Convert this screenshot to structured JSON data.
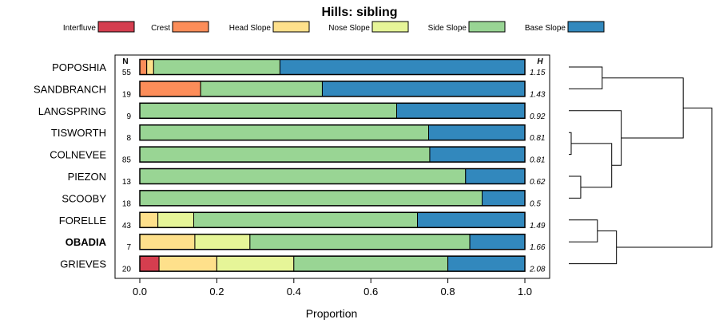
{
  "chart_data": {
    "type": "bar",
    "subtype": "stacked-horizontal-proportion",
    "title": "Hills: sibling",
    "xlabel": "Proportion",
    "xlim": [
      0,
      1
    ],
    "xticks": [
      {
        "value": 0,
        "label": "0.0"
      },
      {
        "value": 0.2,
        "label": "0.2"
      },
      {
        "value": 0.4,
        "label": "0.4"
      },
      {
        "value": 0.6,
        "label": "0.6"
      },
      {
        "value": 0.8,
        "label": "0.8"
      },
      {
        "value": 1,
        "label": "1.0"
      }
    ],
    "n_header": "N",
    "h_header": "H",
    "legend_position": "top",
    "series": [
      {
        "name": "Interfluve",
        "color": "#d53e4f"
      },
      {
        "name": "Crest",
        "color": "#fc8d59"
      },
      {
        "name": "Head Slope",
        "color": "#fee08b"
      },
      {
        "name": "Nose Slope",
        "color": "#e6f598"
      },
      {
        "name": "Side Slope",
        "color": "#99d594"
      },
      {
        "name": "Base Slope",
        "color": "#3288bd"
      }
    ],
    "categories": [
      {
        "name": "POPOSHIA",
        "n": "55",
        "h": "1.15",
        "bold": false,
        "values": [
          0,
          0.018,
          0.018,
          0,
          0.328,
          0.636
        ]
      },
      {
        "name": "SANDBRANCH",
        "n": "19",
        "h": "1.43",
        "bold": false,
        "values": [
          0,
          0.158,
          0,
          0,
          0.316,
          0.526
        ]
      },
      {
        "name": "LANGSPRING",
        "n": "9",
        "h": "0.92",
        "bold": false,
        "values": [
          0,
          0,
          0,
          0,
          0.667,
          0.333
        ]
      },
      {
        "name": "TISWORTH",
        "n": "8",
        "h": "0.81",
        "bold": false,
        "values": [
          0,
          0,
          0,
          0,
          0.75,
          0.25
        ]
      },
      {
        "name": "COLNEVEE",
        "n": "85",
        "h": "0.81",
        "bold": false,
        "values": [
          0,
          0,
          0,
          0,
          0.753,
          0.247
        ]
      },
      {
        "name": "PIEZON",
        "n": "13",
        "h": "0.62",
        "bold": false,
        "values": [
          0,
          0,
          0,
          0,
          0.846,
          0.154
        ]
      },
      {
        "name": "SCOOBY",
        "n": "18",
        "h": "0.5",
        "bold": false,
        "values": [
          0,
          0,
          0,
          0,
          0.889,
          0.111
        ]
      },
      {
        "name": "FORELLE",
        "n": "43",
        "h": "1.49",
        "bold": false,
        "values": [
          0,
          0,
          0.047,
          0.093,
          0.581,
          0.279
        ]
      },
      {
        "name": "OBADIA",
        "n": "7",
        "h": "1.66",
        "bold": true,
        "values": [
          0,
          0,
          0.143,
          0.143,
          0.571,
          0.143
        ]
      },
      {
        "name": "GRIEVES",
        "n": "20",
        "h": "2.08",
        "bold": false,
        "values": [
          0.05,
          0,
          0.15,
          0.2,
          0.4,
          0.2
        ]
      }
    ],
    "dendrogram": {
      "description": "hierarchical clustering tree of the rows",
      "merges": [
        {
          "a": "TISWORTH",
          "b": "COLNEVEE",
          "height": 0.005
        },
        {
          "a": "PIEZON",
          "b": "SCOOBY",
          "height": 0.025
        },
        {
          "a": 0,
          "b": 1,
          "height": 0.09
        },
        {
          "a": "LANGSPRING",
          "b": 2,
          "height": 0.11
        },
        {
          "a": "POPOSHIA",
          "b": "SANDBRANCH",
          "height": 0.07
        },
        {
          "a": "FORELLE",
          "b": "OBADIA",
          "height": 0.06
        },
        {
          "a": "GRIEVES",
          "b": 5,
          "height": 0.1
        },
        {
          "a": 3,
          "b": 4,
          "height": 0.24
        },
        {
          "a": 7,
          "b": 6,
          "height": 0.3
        }
      ]
    }
  }
}
